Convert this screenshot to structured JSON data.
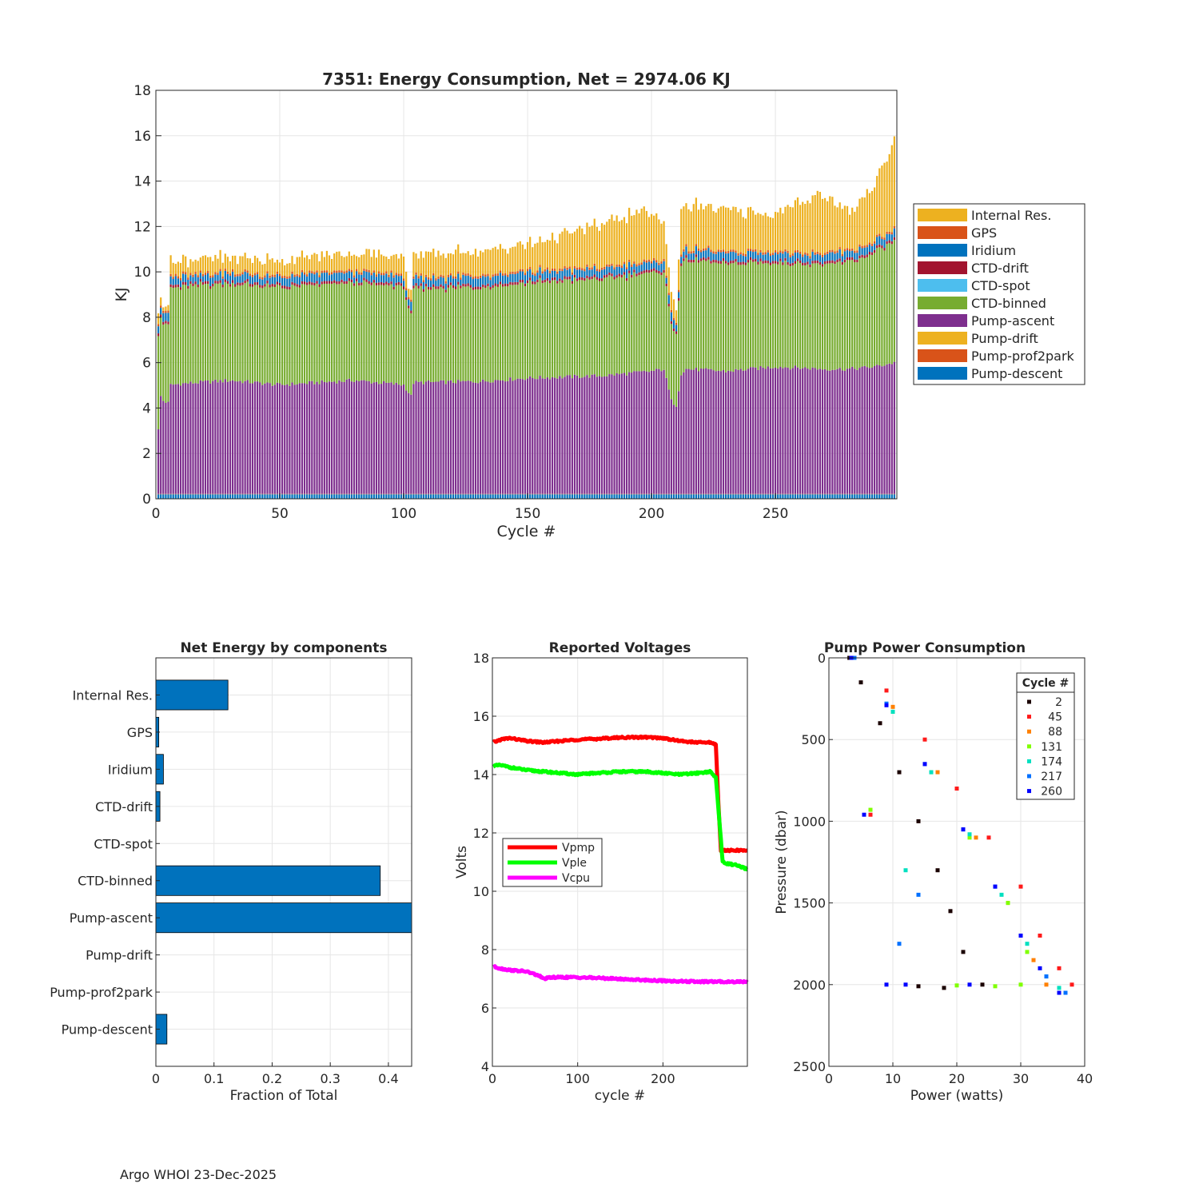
{
  "footer": {
    "credit": "Argo WHOI 23-Dec-2025"
  },
  "colors": {
    "pump_descent": "#0072BD",
    "pump_prof2park": "#D95319",
    "pump_drift": "#EDB120",
    "pump_ascent": "#7E2F8E",
    "ctd_binned": "#77AC30",
    "ctd_spot": "#4DBEEE",
    "ctd_drift": "#A2142F",
    "iridium": "#0072BD",
    "gps": "#D95319",
    "internal_res": "#EDB120",
    "grid": "#e6e6e6",
    "axis": "#262626"
  },
  "chart_data": [
    {
      "id": "energy",
      "type": "bar",
      "stacked": true,
      "title": "7351: Energy Consumption,  Net = 2974.06 KJ",
      "xlabel": "Cycle #",
      "ylabel": "KJ",
      "xlim": [
        0,
        299
      ],
      "ylim": [
        0,
        18
      ],
      "xticks": [
        0,
        50,
        100,
        150,
        200,
        250
      ],
      "yticks": [
        0,
        2,
        4,
        6,
        8,
        10,
        12,
        14,
        16,
        18
      ],
      "grid": true,
      "legend_position": "outside-right",
      "legend": [
        "Internal Res.",
        "GPS",
        "Iridium",
        "CTD-drift",
        "CTD-spot",
        "CTD-binned",
        "Pump-ascent",
        "Pump-drift",
        "Pump-prof2park",
        "Pump-descent"
      ],
      "n_cycles": 298,
      "components_per_cycle": {
        "pump_descent": 0.2,
        "pump_prof2park": 0.02,
        "pump_drift": 0.0,
        "ctd_spot": 0.0,
        "ctd_drift": 0.12,
        "iridium": 0.25,
        "gps": 0.1
      },
      "pump_ascent_total_keypoints": {
        "cycle": [
          1,
          2,
          3,
          5,
          6,
          10,
          30,
          50,
          80,
          100,
          103,
          104,
          130,
          150,
          180,
          200,
          205,
          208,
          210,
          212,
          214,
          230,
          250,
          270,
          280,
          290,
          299
        ],
        "value": [
          3.0,
          4.5,
          4.3,
          4.2,
          5.0,
          5.05,
          5.2,
          5.0,
          5.2,
          5.0,
          4.5,
          5.1,
          5.15,
          5.3,
          5.4,
          5.6,
          5.7,
          4.3,
          4.1,
          5.5,
          5.7,
          5.6,
          5.8,
          5.7,
          5.7,
          5.8,
          6.0
        ]
      },
      "ctd_binned_keypoints": {
        "cycle": [
          1,
          2,
          3,
          5,
          6,
          100,
          103,
          104,
          150,
          200,
          205,
          208,
          210,
          212,
          250,
          270,
          285,
          299
        ],
        "value": [
          4.2,
          3.5,
          3.4,
          3.4,
          4.25,
          4.3,
          3.5,
          4.1,
          4.2,
          4.3,
          4.3,
          3.3,
          3.3,
          4.8,
          4.6,
          4.6,
          4.8,
          5.4
        ]
      },
      "internal_res_keypoints": {
        "cycle": [
          1,
          5,
          6,
          50,
          100,
          103,
          104,
          150,
          195,
          205,
          208,
          210,
          212,
          250,
          268,
          280,
          290,
          295,
          299
        ],
        "value": [
          0.3,
          0.3,
          0.6,
          0.6,
          0.8,
          0.3,
          0.9,
          1.1,
          2.2,
          1.7,
          0.7,
          0.7,
          1.9,
          1.6,
          2.6,
          1.6,
          2.5,
          3.2,
          4.2
        ]
      }
    },
    {
      "id": "components",
      "type": "bar",
      "orientation": "horizontal",
      "title": "Net Energy by components",
      "xlabel": "Fraction of Total",
      "xlim": [
        0,
        0.44
      ],
      "xticks": [
        0,
        0.1,
        0.2,
        0.3,
        0.4
      ],
      "xtick_labels": [
        "0",
        "0.1",
        "0.2",
        "0.3",
        "0.4"
      ],
      "grid": true,
      "categories": [
        "Internal Res.",
        "GPS",
        "Iridium",
        "CTD-drift",
        "CTD-spot",
        "CTD-binned",
        "Pump-ascent",
        "Pump-drift",
        "Pump-prof2park",
        "Pump-descent"
      ],
      "values": [
        0.124,
        0.005,
        0.013,
        0.007,
        0.0,
        0.386,
        0.445,
        0.0,
        0.0,
        0.019
      ]
    },
    {
      "id": "voltages",
      "type": "line",
      "title": "Reported Voltages",
      "xlabel": "cycle #",
      "ylabel": "Volts",
      "xlim": [
        0,
        299
      ],
      "ylim": [
        4,
        18
      ],
      "xticks": [
        0,
        100,
        200
      ],
      "yticks": [
        4,
        6,
        8,
        10,
        12,
        14,
        16,
        18
      ],
      "grid": true,
      "legend_position": "center-left",
      "series": [
        {
          "name": "Vpmp",
          "color": "#FF0000",
          "x": [
            1,
            10,
            20,
            40,
            60,
            80,
            100,
            120,
            150,
            180,
            200,
            220,
            240,
            255,
            262,
            265,
            268,
            272,
            299
          ],
          "y": [
            15.1,
            15.2,
            15.25,
            15.15,
            15.1,
            15.15,
            15.2,
            15.22,
            15.27,
            15.28,
            15.25,
            15.15,
            15.1,
            15.1,
            15.05,
            13.0,
            11.4,
            11.4,
            11.4
          ]
        },
        {
          "name": "Vple",
          "color": "#00FF00",
          "x": [
            1,
            10,
            20,
            40,
            60,
            80,
            100,
            120,
            150,
            180,
            200,
            220,
            240,
            255,
            262,
            266,
            270,
            275,
            285,
            299
          ],
          "y": [
            14.3,
            14.32,
            14.25,
            14.15,
            14.1,
            14.05,
            14.0,
            14.05,
            14.1,
            14.1,
            14.05,
            14.0,
            14.05,
            14.1,
            13.9,
            12.5,
            11.0,
            10.95,
            10.9,
            10.75
          ]
        },
        {
          "name": "Vcpu",
          "color": "#FF00FF",
          "x": [
            1,
            10,
            20,
            40,
            55,
            60,
            70,
            100,
            130,
            160,
            200,
            240,
            280,
            299
          ],
          "y": [
            7.42,
            7.35,
            7.3,
            7.25,
            7.1,
            7.0,
            7.05,
            7.05,
            7.02,
            6.98,
            6.93,
            6.9,
            6.9,
            6.9
          ]
        }
      ]
    },
    {
      "id": "pump",
      "type": "scatter",
      "title": "Pump Power Consumption",
      "xlabel": "Power (watts)",
      "ylabel": "Pressure (dbar)",
      "xlim": [
        0,
        40
      ],
      "ylim": [
        0,
        2500
      ],
      "y_reversed": true,
      "xticks": [
        0,
        10,
        20,
        30,
        40
      ],
      "yticks": [
        0,
        500,
        1000,
        1500,
        2000,
        2500
      ],
      "ytick_labels": [
        "0",
        "500",
        "1000",
        "1500",
        "2000",
        "2500"
      ],
      "grid": true,
      "legend_title": "Cycle #",
      "legend_position": "top-right",
      "series": [
        {
          "name": "2",
          "color": "#1a0000",
          "points": [
            [
              3.2,
              0
            ],
            [
              5,
              150
            ],
            [
              8,
              400
            ],
            [
              11,
              700
            ],
            [
              14,
              1000
            ],
            [
              17,
              1300
            ],
            [
              19,
              1550
            ],
            [
              21,
              1800
            ],
            [
              24,
              2000
            ],
            [
              18,
              2020
            ],
            [
              14,
              2010
            ]
          ]
        },
        {
          "name": "45",
          "color": "#FF1a1a",
          "points": [
            [
              4,
              0
            ],
            [
              9,
              200
            ],
            [
              15,
              500
            ],
            [
              20,
              800
            ],
            [
              25,
              1100
            ],
            [
              30,
              1400
            ],
            [
              33,
              1700
            ],
            [
              36,
              1900
            ],
            [
              38,
              2000
            ],
            [
              6.5,
              960
            ]
          ]
        },
        {
          "name": "88",
          "color": "#FF8000",
          "points": [
            [
              4,
              0
            ],
            [
              10,
              300
            ],
            [
              17,
              700
            ],
            [
              23,
              1100
            ],
            [
              28,
              1500
            ],
            [
              32,
              1850
            ],
            [
              34,
              2000
            ]
          ]
        },
        {
          "name": "131",
          "color": "#80FF00",
          "points": [
            [
              4,
              0
            ],
            [
              10,
              330
            ],
            [
              16,
              700
            ],
            [
              22,
              1100
            ],
            [
              28,
              1500
            ],
            [
              31,
              1800
            ],
            [
              30,
              2000
            ],
            [
              26,
              2010
            ],
            [
              20,
              2005
            ],
            [
              6.5,
              930
            ]
          ]
        },
        {
          "name": "174",
          "color": "#00E0C0",
          "points": [
            [
              4,
              0
            ],
            [
              10,
              330
            ],
            [
              16,
              700
            ],
            [
              22,
              1080
            ],
            [
              27,
              1450
            ],
            [
              31,
              1750
            ],
            [
              34,
              1950
            ],
            [
              36,
              2020
            ],
            [
              12,
              1300
            ]
          ]
        },
        {
          "name": "217",
          "color": "#0070FF",
          "points": [
            [
              4,
              0
            ],
            [
              9,
              280
            ],
            [
              15,
              650
            ],
            [
              21,
              1050
            ],
            [
              26,
              1400
            ],
            [
              30,
              1700
            ],
            [
              34,
              1950
            ],
            [
              37,
              2050
            ],
            [
              11,
              1750
            ],
            [
              14,
              1450
            ]
          ]
        },
        {
          "name": "260",
          "color": "#0000FF",
          "points": [
            [
              3.5,
              0
            ],
            [
              9,
              290
            ],
            [
              15,
              650
            ],
            [
              21,
              1050
            ],
            [
              26,
              1400
            ],
            [
              30,
              1700
            ],
            [
              33,
              1900
            ],
            [
              36,
              2050
            ],
            [
              22,
              2000
            ],
            [
              12,
              2000
            ],
            [
              9,
              2000
            ],
            [
              5.5,
              960
            ]
          ]
        }
      ]
    }
  ]
}
